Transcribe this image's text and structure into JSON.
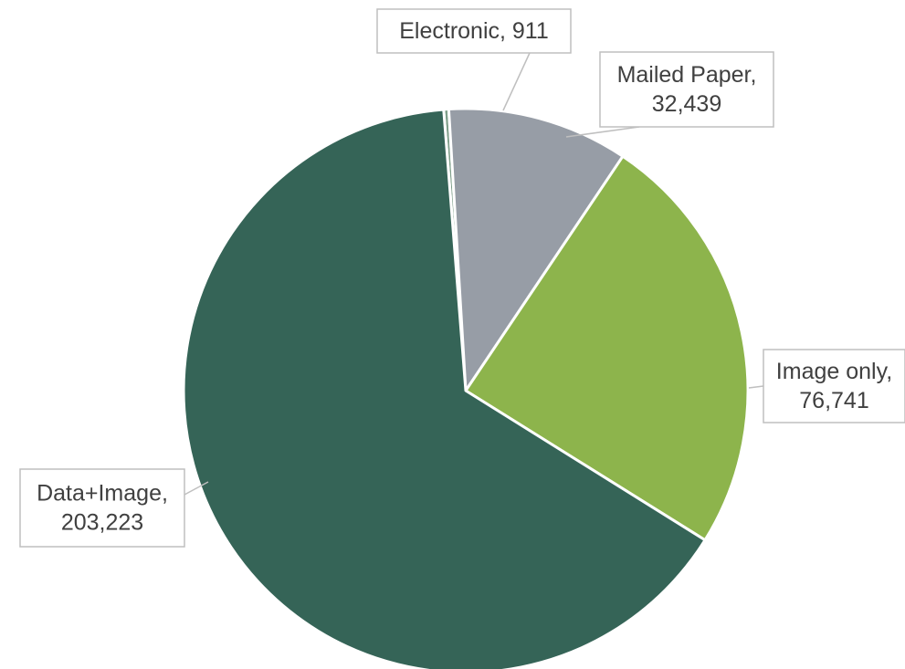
{
  "chart_data": {
    "type": "pie",
    "title": "",
    "slices": [
      {
        "name": "Electronic",
        "value": 911,
        "label_lines": [
          "Electronic, 911"
        ],
        "color": "#7f9f8a"
      },
      {
        "name": "Mailed Paper",
        "value": 32439,
        "label_lines": [
          "Mailed Paper,",
          "32,439"
        ],
        "color": "#979da6"
      },
      {
        "name": "Image only",
        "value": 76741,
        "label_lines": [
          "Image only,",
          "76,741"
        ],
        "color": "#8db44c"
      },
      {
        "name": "Data+Image",
        "value": 203223,
        "label_lines": [
          "Data+Image,",
          "203,223"
        ],
        "color": "#356457"
      }
    ],
    "legend": "none",
    "data_labels": "callouts"
  }
}
